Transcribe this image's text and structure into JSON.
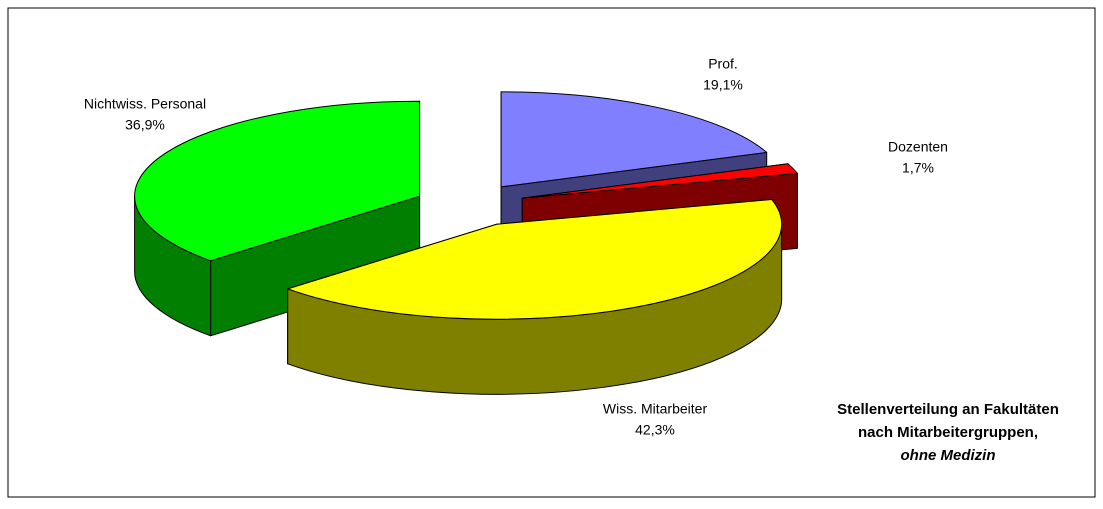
{
  "chart_data": {
    "type": "pie3d",
    "title": [
      "Stellenverteilung an Fakultäten",
      "nach Mitarbeitergruppen,",
      "ohne Medizin"
    ],
    "categories": [
      "Prof.",
      "Dozenten",
      "Wiss. Mitarbeiter",
      "Nichtwiss. Personal"
    ],
    "values": [
      19.1,
      1.7,
      42.3,
      36.9
    ],
    "value_labels": [
      "19,1%",
      "1,7%",
      "42,3%",
      "36,9%"
    ],
    "colors": [
      "#8080ff",
      "#ff0000",
      "#ffff00",
      "#00ff00"
    ]
  }
}
